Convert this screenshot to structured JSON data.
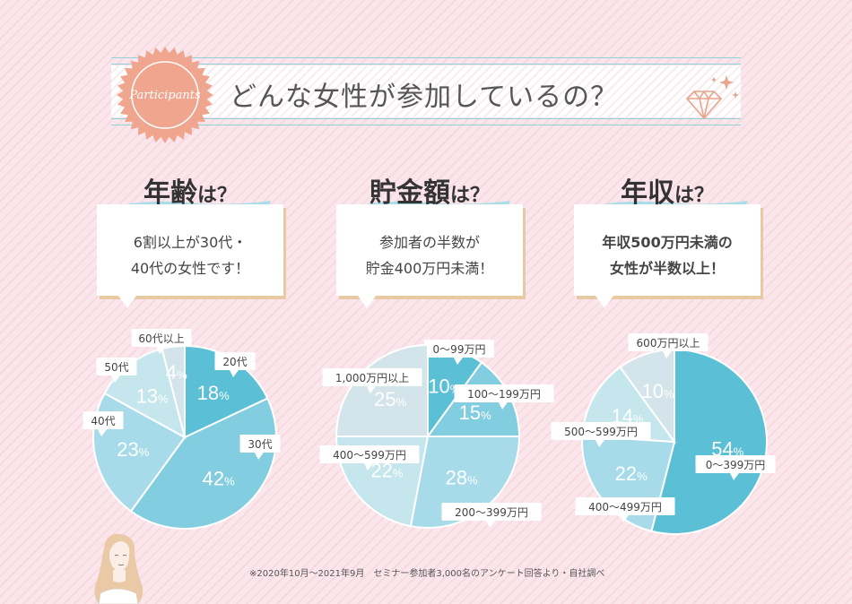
{
  "header": {
    "badge_text": "Participants",
    "title": "どんな女性が参加しているの？"
  },
  "charts": [
    {
      "title_main": "年齢",
      "title_suffix": "は？",
      "bubble_lines": [
        "6割以上が30代・",
        "40代の女性です！"
      ],
      "bubble_bold": false
    },
    {
      "title_main": "貯金額",
      "title_suffix": "は？",
      "bubble_lines": [
        "参加者の半数が",
        "貯金400万円未満！"
      ],
      "bubble_bold": false
    },
    {
      "title_main": "年収",
      "title_suffix": "は？",
      "bubble_lines": [
        "年収500万円未満の",
        "女性が半数以上！"
      ],
      "bubble_bold": true
    }
  ],
  "chart_data": [
    {
      "type": "pie",
      "title": "年齢は？",
      "slices": [
        {
          "label": "20代",
          "value": 18,
          "pct_text": "18%",
          "color": "#5bbfd5"
        },
        {
          "label": "30代",
          "value": 42,
          "pct_text": "42%",
          "color": "#82cde0"
        },
        {
          "label": "40代",
          "value": 23,
          "pct_text": "23%",
          "color": "#a7dbe9"
        },
        {
          "label": "50代",
          "value": 13,
          "pct_text": "13%",
          "color": "#c6e6ee"
        },
        {
          "label": "60代以上",
          "value": 4,
          "pct_text": "4%",
          "color": "#d3e4ea"
        }
      ]
    },
    {
      "type": "pie",
      "title": "貯金額は？",
      "slices": [
        {
          "label": "0～99万円",
          "value": 10,
          "pct_text": "10%",
          "color": "#5bbfd5"
        },
        {
          "label": "100～199万円",
          "value": 15,
          "pct_text": "15%",
          "color": "#82cde0"
        },
        {
          "label": "200～399万円",
          "value": 28,
          "pct_text": "28%",
          "color": "#a7dbe9"
        },
        {
          "label": "400～599万円",
          "value": 22,
          "pct_text": "22%",
          "color": "#c6e6ee"
        },
        {
          "label": "1,000万円以上",
          "value": 25,
          "pct_text": "25%",
          "color": "#d3e4ea"
        }
      ]
    },
    {
      "type": "pie",
      "title": "年収は？",
      "slices": [
        {
          "label": "0～399万円",
          "value": 54,
          "pct_text": "54%",
          "color": "#5bbfd5"
        },
        {
          "label": "400～499万円",
          "value": 22,
          "pct_text": "22%",
          "color": "#a7dbe9"
        },
        {
          "label": "500～599万円",
          "value": 14,
          "pct_text": "14%",
          "color": "#c6e6ee"
        },
        {
          "label": "600万円以上",
          "value": 10,
          "pct_text": "10%",
          "color": "#d3e4ea"
        }
      ]
    }
  ],
  "footnote": "※2020年10月～2021年9月　セミナー参加者3,000名のアンケート回答より・自社調べ",
  "colors": {
    "accent_blue": "#5bbfd5",
    "badge_salmon": "#f0a58f",
    "bubble_shadow": "#e7c9a4",
    "background_pink": "#fbe6ec"
  }
}
